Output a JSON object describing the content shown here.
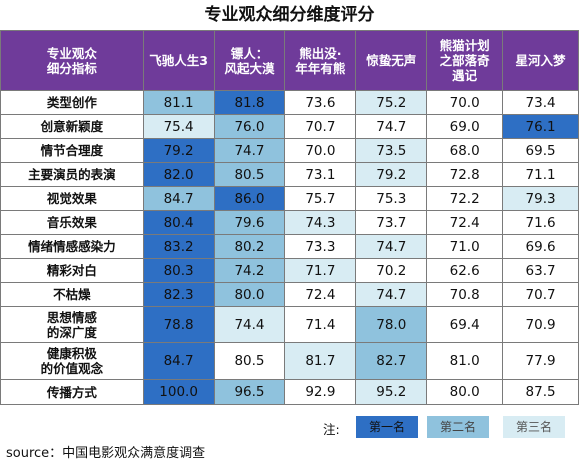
{
  "title": "专业观众细分维度评分",
  "chart_data": {
    "type": "table",
    "row_header": "专业观众细分指标",
    "columns": [
      "飞驰人生3",
      "镖人：风起大漠",
      "熊出没·年年有熊",
      "惊蛰无声",
      "熊猫计划之部落奇遇记",
      "星河入梦"
    ],
    "rows": [
      {
        "label": "类型创作",
        "values": [
          "81.1",
          "81.8",
          "73.6",
          "75.2",
          "70.0",
          "73.4"
        ],
        "ranks": [
          2,
          1,
          0,
          3,
          0,
          0
        ]
      },
      {
        "label": "创意新颖度",
        "values": [
          "75.4",
          "76.0",
          "70.7",
          "74.7",
          "69.0",
          "76.1"
        ],
        "ranks": [
          3,
          2,
          0,
          0,
          0,
          1
        ]
      },
      {
        "label": "情节合理度",
        "values": [
          "79.2",
          "74.7",
          "70.0",
          "73.5",
          "68.0",
          "69.5"
        ],
        "ranks": [
          1,
          2,
          0,
          3,
          0,
          0
        ]
      },
      {
        "label": "主要演员的表演",
        "values": [
          "82.0",
          "80.5",
          "73.1",
          "79.2",
          "72.8",
          "71.1"
        ],
        "ranks": [
          1,
          2,
          0,
          3,
          0,
          0
        ]
      },
      {
        "label": "视觉效果",
        "values": [
          "84.7",
          "86.0",
          "75.7",
          "75.3",
          "72.2",
          "79.3"
        ],
        "ranks": [
          2,
          1,
          0,
          0,
          0,
          3
        ]
      },
      {
        "label": "音乐效果",
        "values": [
          "80.4",
          "79.6",
          "74.3",
          "73.7",
          "72.4",
          "71.6"
        ],
        "ranks": [
          1,
          2,
          3,
          0,
          0,
          0
        ]
      },
      {
        "label": "情绪情感感染力",
        "values": [
          "83.2",
          "80.2",
          "73.3",
          "74.7",
          "71.0",
          "69.6"
        ],
        "ranks": [
          1,
          2,
          0,
          3,
          0,
          0
        ]
      },
      {
        "label": "精彩对白",
        "values": [
          "80.3",
          "74.2",
          "71.7",
          "70.2",
          "62.6",
          "63.7"
        ],
        "ranks": [
          1,
          2,
          3,
          0,
          0,
          0
        ]
      },
      {
        "label": "不枯燥",
        "values": [
          "82.3",
          "80.0",
          "72.4",
          "74.7",
          "70.8",
          "70.7"
        ],
        "ranks": [
          1,
          2,
          0,
          3,
          0,
          0
        ]
      },
      {
        "label": "思想情感的深广度",
        "values": [
          "78.8",
          "74.4",
          "71.4",
          "78.0",
          "69.4",
          "70.9"
        ],
        "ranks": [
          1,
          3,
          0,
          2,
          0,
          0
        ]
      },
      {
        "label": "健康积极的价值观念",
        "values": [
          "84.7",
          "80.5",
          "81.7",
          "82.7",
          "81.0",
          "77.9"
        ],
        "ranks": [
          1,
          0,
          3,
          2,
          0,
          0
        ]
      },
      {
        "label": "传播方式",
        "values": [
          "100.0",
          "96.5",
          "92.9",
          "95.2",
          "80.0",
          "87.5"
        ],
        "ranks": [
          1,
          2,
          0,
          3,
          0,
          0
        ]
      }
    ],
    "rank_colors": {
      "1": "#2e6fc4",
      "2": "#8fc2dd",
      "3": "#d8ecf3"
    }
  },
  "legend": {
    "note": "注:",
    "first": "第一名",
    "second": "第二名",
    "third": "第三名"
  },
  "source": "source：中国电影观众满意度调查"
}
